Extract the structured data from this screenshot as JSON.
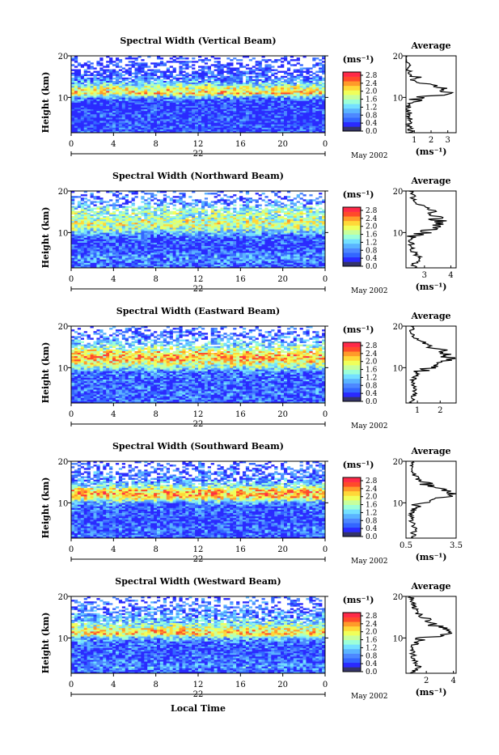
{
  "colors": {
    "scale": [
      "#34346a",
      "#2a2aff",
      "#3366ff",
      "#4d88ff",
      "#5ab4ff",
      "#74e0ff",
      "#9cffd8",
      "#c8ff9c",
      "#f0ff5a",
      "#ffd838",
      "#ff9a2a",
      "#ff4a2a",
      "#ff2a48"
    ]
  },
  "panels": [
    {
      "title": "Spectral Width (Vertical Beam)",
      "ylabel": "Height (km)",
      "yticks": [
        "20",
        "10"
      ],
      "xticks": [
        "0",
        "4",
        "8",
        "12",
        "16",
        "20",
        "0"
      ],
      "day": "22",
      "date": "May 2002",
      "unit": "(ms⁻¹)",
      "colorbar_ticks": [
        "2.8",
        "2.4",
        "2.0",
        "1.6",
        "1.2",
        "0.8",
        "0.4",
        "0.0"
      ],
      "avg_title": "Average",
      "avg_yticks": [
        "20",
        "10"
      ],
      "avg_xticks": [
        "1",
        "2",
        "3"
      ],
      "avg_xlabel": "(ms⁻¹)"
    },
    {
      "title": "Spectral Width (Northward Beam)",
      "ylabel": "Height (km)",
      "yticks": [
        "20",
        "10"
      ],
      "xticks": [
        "0",
        "4",
        "8",
        "12",
        "16",
        "20",
        "0"
      ],
      "day": "22",
      "date": "May 2002",
      "unit": "(ms⁻¹)",
      "colorbar_ticks": [
        "2.8",
        "2.4",
        "2.0",
        "1.6",
        "1.2",
        "0.8",
        "0.4",
        "0.0"
      ],
      "avg_title": "Average",
      "avg_yticks": [
        "20",
        "10"
      ],
      "avg_xticks": [
        "3",
        "4"
      ],
      "avg_xlabel": "(ms⁻¹)"
    },
    {
      "title": "Spectral Width (Eastward Beam)",
      "ylabel": "Height (km)",
      "yticks": [
        "20",
        "10"
      ],
      "xticks": [
        "0",
        "4",
        "8",
        "12",
        "16",
        "20",
        "0"
      ],
      "day": "22",
      "date": "May 2002",
      "unit": "(ms⁻¹)",
      "colorbar_ticks": [
        "2.8",
        "2.4",
        "2.0",
        "1.6",
        "1.2",
        "0.8",
        "0.4",
        "0.0"
      ],
      "avg_title": "Average",
      "avg_yticks": [
        "20",
        "10"
      ],
      "avg_xticks": [
        "1",
        "2"
      ],
      "avg_xlabel": ""
    },
    {
      "title": "Spectral Width (Southward Beam)",
      "ylabel": "Height (km)",
      "yticks": [
        "20",
        "10"
      ],
      "xticks": [
        "0",
        "4",
        "8",
        "12",
        "16",
        "20",
        "0"
      ],
      "day": "22",
      "date": "May 2002",
      "unit": "(ms⁻¹)",
      "colorbar_ticks": [
        "2.8",
        "2.4",
        "2.0",
        "1.6",
        "1.2",
        "0.8",
        "0.4",
        "0.0"
      ],
      "avg_title": "Average",
      "avg_yticks": [
        "20",
        "10"
      ],
      "avg_xticks": [
        "0.5",
        "3.5"
      ],
      "avg_xlabel": "(ms⁻¹)"
    },
    {
      "title": "Spectral Width (Westward Beam)",
      "ylabel": "Height (km)",
      "yticks": [
        "20",
        "10"
      ],
      "xticks": [
        "0",
        "4",
        "8",
        "12",
        "16",
        "20",
        "0"
      ],
      "day": "22",
      "date": "May 2002",
      "unit": "(ms⁻¹)",
      "colorbar_ticks": [
        "2.8",
        "2.4",
        "2.0",
        "1.6",
        "1.2",
        "0.8",
        "0.4",
        "0.0"
      ],
      "avg_title": "Average",
      "avg_yticks": [
        "20",
        "10"
      ],
      "avg_xticks": [
        "2",
        "4"
      ],
      "avg_xlabel": "(ms⁻¹)"
    }
  ],
  "footer": {
    "xlabel": "Local Time"
  },
  "chart_data": [
    {
      "type": "heatmap",
      "title": "Spectral Width (Vertical Beam)",
      "ylabel": "Height (km)",
      "xlabel": "Local Time",
      "xlim": [
        0,
        24
      ],
      "ylim": [
        1.5,
        20
      ],
      "colorbar": {
        "label": "(ms⁻¹)",
        "range": [
          0.0,
          2.8
        ]
      },
      "profile": {
        "title": "Average",
        "xlim": [
          0.5,
          3.5
        ],
        "height": [
          2,
          4,
          6,
          8,
          9,
          10,
          11,
          12,
          13,
          14,
          15,
          16,
          18,
          20
        ],
        "value": [
          0.8,
          0.7,
          0.7,
          0.6,
          0.8,
          1.4,
          3.0,
          2.6,
          2.0,
          1.2,
          0.9,
          0.7,
          0.6,
          0.5
        ]
      }
    },
    {
      "type": "heatmap",
      "title": "Spectral Width (Northward Beam)",
      "ylabel": "Height (km)",
      "xlabel": "Local Time",
      "xlim": [
        0,
        24
      ],
      "ylim": [
        1.5,
        20
      ],
      "colorbar": {
        "label": "(ms⁻¹)",
        "range": [
          0.0,
          2.8
        ]
      },
      "profile": {
        "title": "Average",
        "xlim": [
          2.3,
          4.2
        ],
        "height": [
          2,
          3,
          4,
          6,
          8,
          9,
          10,
          11,
          12,
          13,
          14,
          15,
          16,
          17,
          18,
          20
        ],
        "value": [
          2.6,
          2.7,
          2.8,
          2.5,
          2.5,
          2.6,
          3.0,
          3.4,
          3.6,
          3.5,
          3.3,
          3.4,
          3.1,
          2.7,
          2.6,
          2.5
        ]
      }
    },
    {
      "type": "heatmap",
      "title": "Spectral Width (Eastward Beam)",
      "ylabel": "Height (km)",
      "xlabel": "Local Time",
      "xlim": [
        0,
        24
      ],
      "ylim": [
        1.5,
        20
      ],
      "colorbar": {
        "label": "(ms⁻¹)",
        "range": [
          0.0,
          2.8
        ]
      },
      "profile": {
        "title": "Average",
        "xlim": [
          0.5,
          2.7
        ],
        "height": [
          2,
          4,
          6,
          8,
          9,
          10,
          11,
          12,
          13,
          14,
          15,
          16,
          17,
          18,
          20
        ],
        "value": [
          0.8,
          0.9,
          0.8,
          0.9,
          1.0,
          1.6,
          2.0,
          2.3,
          2.4,
          2.1,
          1.6,
          1.3,
          1.0,
          0.8,
          0.7
        ]
      }
    },
    {
      "type": "heatmap",
      "title": "Spectral Width (Southward Beam)",
      "ylabel": "Height (km)",
      "xlabel": "Local Time",
      "xlim": [
        0,
        24
      ],
      "ylim": [
        1.5,
        20
      ],
      "colorbar": {
        "label": "(ms⁻¹)",
        "range": [
          0.0,
          2.8
        ]
      },
      "profile": {
        "title": "Average",
        "xlim": [
          0.5,
          3.5
        ],
        "height": [
          2,
          4,
          6,
          8,
          9,
          10,
          11,
          12,
          13,
          14,
          15,
          16,
          18,
          20
        ],
        "value": [
          0.9,
          1.0,
          0.8,
          0.9,
          1.0,
          1.4,
          2.6,
          3.2,
          2.9,
          2.0,
          1.4,
          1.1,
          0.9,
          0.8
        ]
      }
    },
    {
      "type": "heatmap",
      "title": "Spectral Width (Westward Beam)",
      "ylabel": "Height (km)",
      "xlabel": "Local Time",
      "xlim": [
        0,
        24
      ],
      "ylim": [
        1.5,
        20
      ],
      "colorbar": {
        "label": "(ms⁻¹)",
        "range": [
          0.0,
          2.8
        ]
      },
      "profile": {
        "title": "Average",
        "xlim": [
          0.5,
          4.2
        ],
        "height": [
          2,
          3,
          4,
          6,
          8,
          9,
          10,
          11,
          12,
          13,
          14,
          15,
          16,
          17,
          18,
          20
        ],
        "value": [
          1.0,
          1.5,
          1.2,
          1.0,
          1.0,
          1.3,
          1.8,
          3.6,
          3.2,
          2.6,
          2.0,
          1.6,
          1.4,
          1.2,
          1.0,
          0.9
        ]
      }
    }
  ]
}
